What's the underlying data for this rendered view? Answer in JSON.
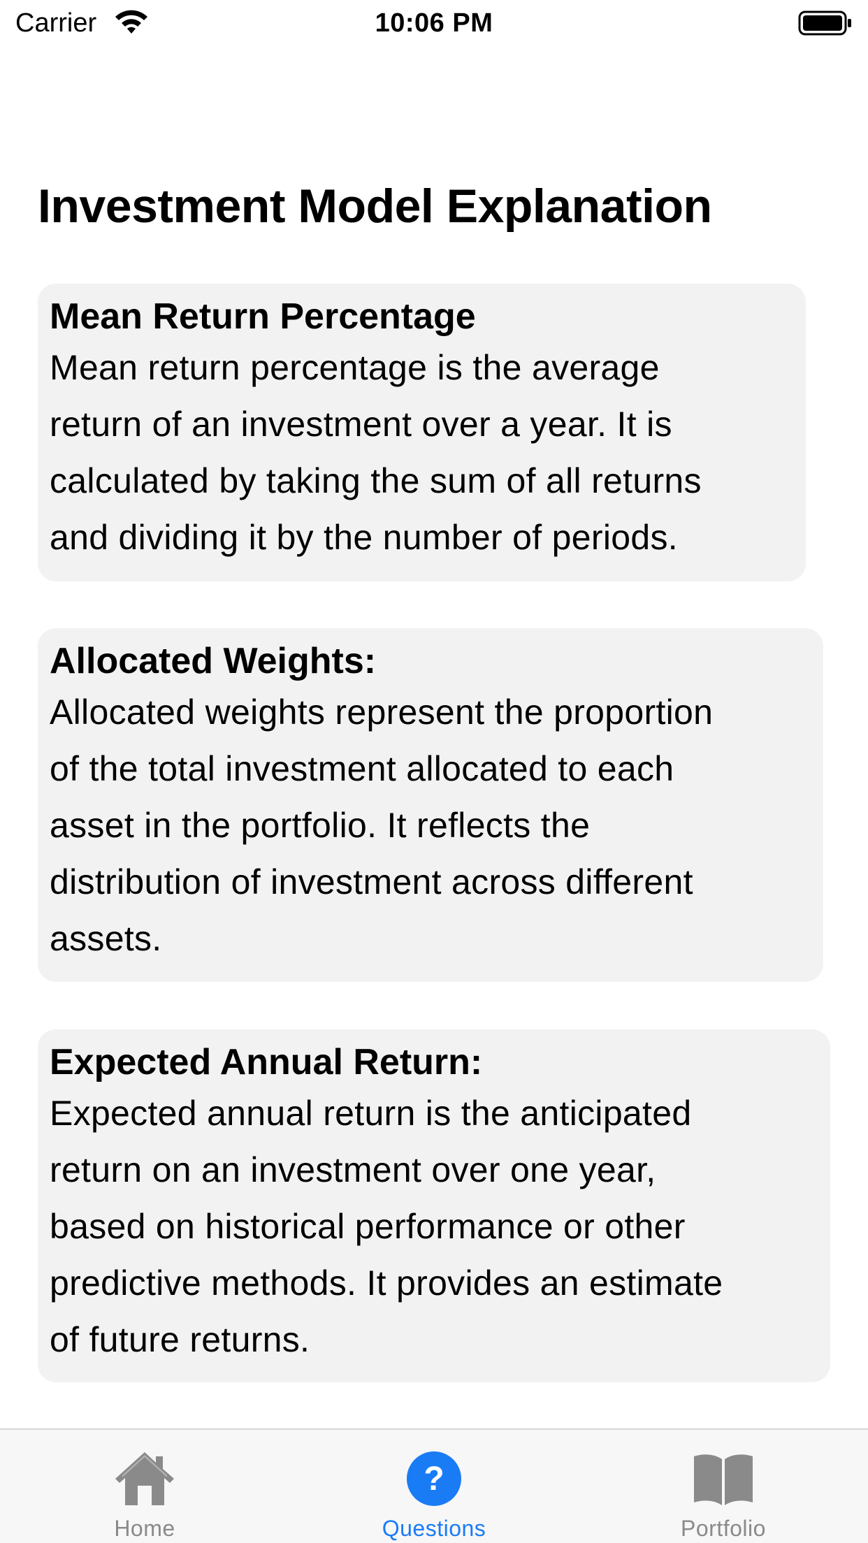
{
  "status_bar": {
    "carrier": "Carrier",
    "time": "10:06 PM",
    "wifi_icon": "wifi-icon",
    "battery_icon": "battery-icon"
  },
  "page": {
    "title": "Investment Model Explanation"
  },
  "cards": [
    {
      "heading": "Mean Return Percentage",
      "lines": [
        "Mean return percentage is the average",
        "return of an investment over a year. It is",
        "calculated by taking the sum of all returns",
        "and dividing it by the number of periods."
      ]
    },
    {
      "heading": "Allocated Weights:",
      "lines": [
        "Allocated weights represent the proportion",
        "of the total investment allocated to each",
        "asset in the portfolio. It reflects the",
        "distribution of investment across different",
        "assets."
      ]
    },
    {
      "heading": "Expected Annual Return:",
      "lines": [
        "Expected annual return is the anticipated",
        "return on an investment over one year,",
        "based on historical performance or other",
        "predictive methods. It provides an estimate",
        "of future returns."
      ]
    }
  ],
  "tab_bar": {
    "tabs": [
      {
        "label": "Home",
        "icon": "home-icon",
        "selected": false
      },
      {
        "label": "Questions",
        "icon": "question-circle-icon",
        "selected": true
      },
      {
        "label": "Portfolio",
        "icon": "book-icon",
        "selected": false
      }
    ]
  },
  "colors": {
    "accent": "#1a7cf5",
    "card_background": "#f2f2f2",
    "tab_inactive": "#8a8a8a",
    "tab_bar_background": "#f7f7f7"
  }
}
